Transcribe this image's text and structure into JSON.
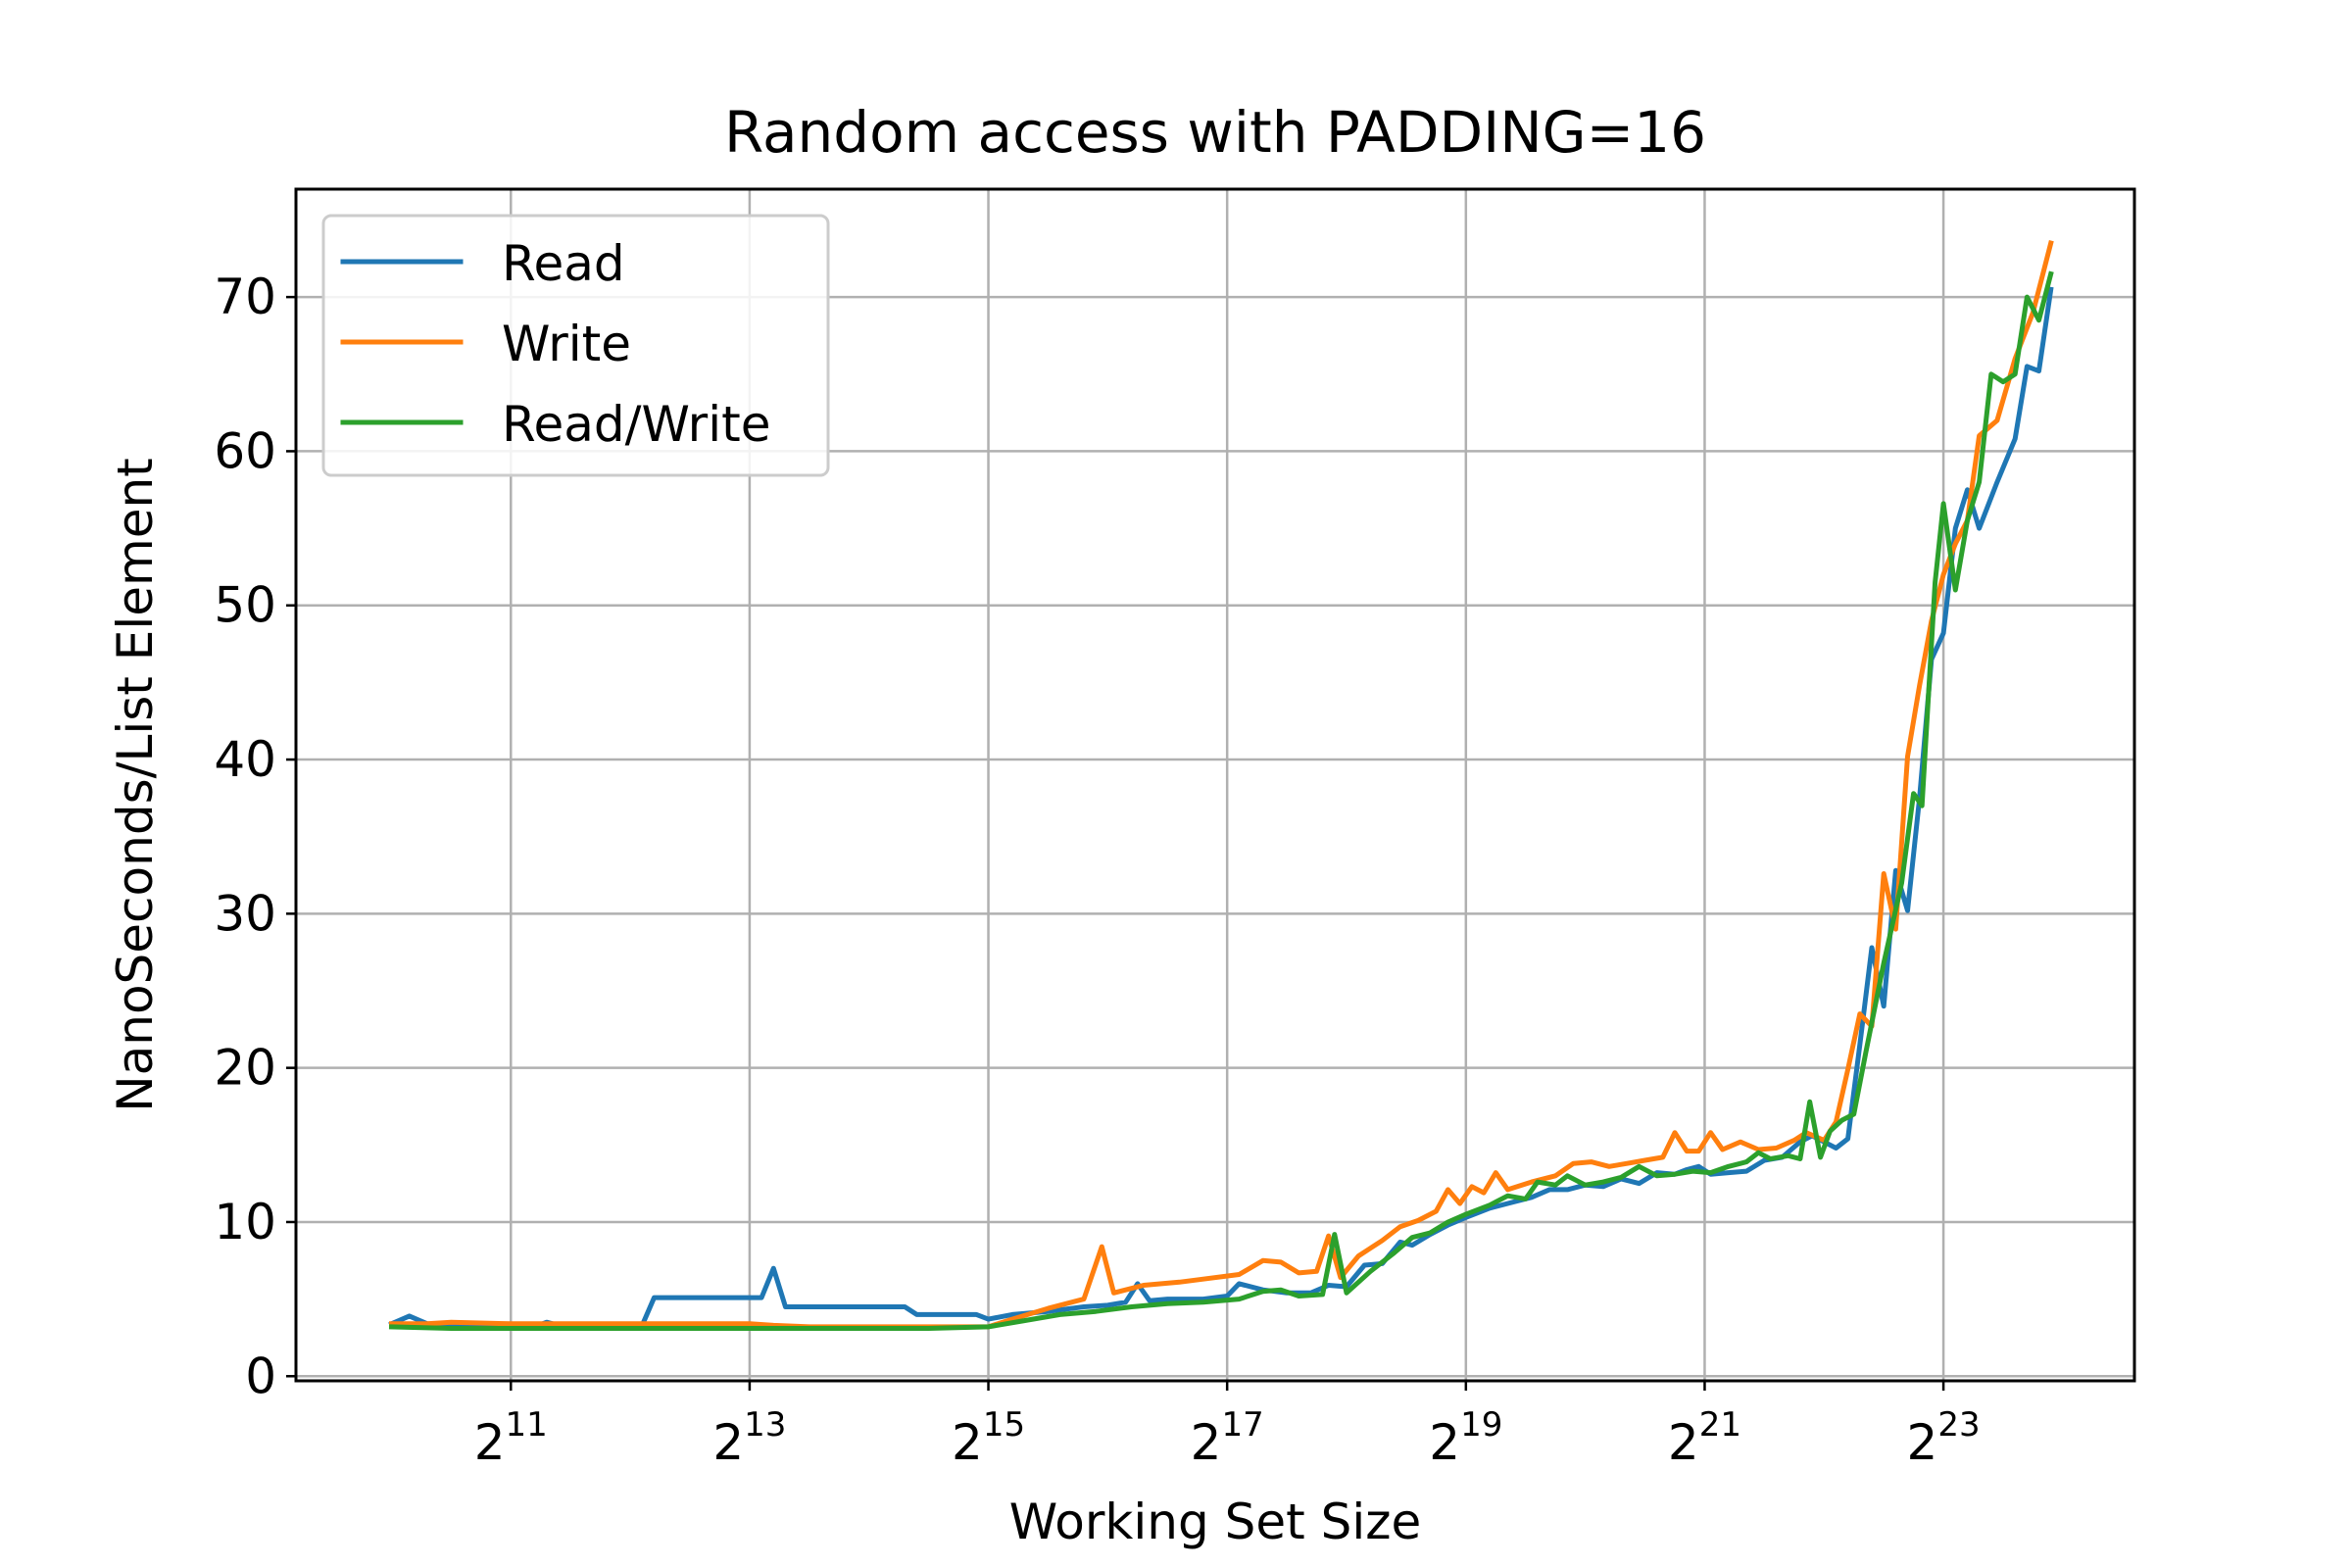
{
  "chart_data": {
    "type": "line",
    "title": "Random access with PADDING=16",
    "xlabel": "Working Set Size",
    "ylabel": "NanoSeconds/List Element",
    "x_scale": "log2",
    "x_ticks": [
      {
        "base": "2",
        "exp": "11",
        "value": 2048
      },
      {
        "base": "2",
        "exp": "13",
        "value": 8192
      },
      {
        "base": "2",
        "exp": "15",
        "value": 32768
      },
      {
        "base": "2",
        "exp": "17",
        "value": 131072
      },
      {
        "base": "2",
        "exp": "19",
        "value": 524288
      },
      {
        "base": "2",
        "exp": "21",
        "value": 2097152
      },
      {
        "base": "2",
        "exp": "23",
        "value": 8388608
      }
    ],
    "y_ticks": [
      "0",
      "10",
      "20",
      "30",
      "40",
      "50",
      "60",
      "70"
    ],
    "xlim_exp": [
      9.2,
      24.6
    ],
    "ylim": [
      -0.3,
      77
    ],
    "grid": true,
    "legend_position": "top-left",
    "series": [
      {
        "name": "Read",
        "color": "#1f77b4",
        "points": [
          [
            10.0,
            3.4
          ],
          [
            10.15,
            3.9
          ],
          [
            10.3,
            3.4
          ],
          [
            10.5,
            3.3
          ],
          [
            11.0,
            3.3
          ],
          [
            11.2,
            3.2
          ],
          [
            11.3,
            3.5
          ],
          [
            11.4,
            3.3
          ],
          [
            12.0,
            3.3
          ],
          [
            12.1,
            3.3
          ],
          [
            12.2,
            5.1
          ],
          [
            13.0,
            5.1
          ],
          [
            13.1,
            5.1
          ],
          [
            13.2,
            7.0
          ],
          [
            13.3,
            4.5
          ],
          [
            14.0,
            4.5
          ],
          [
            14.3,
            4.5
          ],
          [
            14.4,
            4.0
          ],
          [
            14.9,
            4.0
          ],
          [
            15.0,
            3.7
          ],
          [
            15.2,
            4.0
          ],
          [
            15.5,
            4.2
          ],
          [
            15.8,
            4.5
          ],
          [
            16.0,
            4.6
          ],
          [
            16.15,
            4.8
          ],
          [
            16.25,
            6.0
          ],
          [
            16.35,
            4.9
          ],
          [
            16.5,
            5.0
          ],
          [
            16.8,
            5.0
          ],
          [
            17.0,
            5.2
          ],
          [
            17.1,
            6.0
          ],
          [
            17.3,
            5.6
          ],
          [
            17.5,
            5.4
          ],
          [
            17.7,
            5.4
          ],
          [
            17.85,
            5.9
          ],
          [
            18.0,
            5.8
          ],
          [
            18.15,
            7.2
          ],
          [
            18.3,
            7.3
          ],
          [
            18.45,
            8.7
          ],
          [
            18.55,
            8.5
          ],
          [
            18.7,
            9.2
          ],
          [
            18.85,
            9.8
          ],
          [
            19.0,
            10.3
          ],
          [
            19.2,
            10.9
          ],
          [
            19.4,
            11.3
          ],
          [
            19.55,
            11.6
          ],
          [
            19.7,
            12.1
          ],
          [
            19.85,
            12.1
          ],
          [
            20.0,
            12.4
          ],
          [
            20.15,
            12.3
          ],
          [
            20.3,
            12.8
          ],
          [
            20.45,
            12.5
          ],
          [
            20.6,
            13.2
          ],
          [
            20.75,
            13.1
          ],
          [
            20.85,
            13.4
          ],
          [
            20.95,
            13.6
          ],
          [
            21.05,
            13.1
          ],
          [
            21.2,
            13.2
          ],
          [
            21.35,
            13.3
          ],
          [
            21.5,
            14.0
          ],
          [
            21.65,
            14.2
          ],
          [
            21.8,
            15.2
          ],
          [
            21.9,
            15.6
          ],
          [
            22.0,
            15.2
          ],
          [
            22.1,
            14.8
          ],
          [
            22.2,
            15.4
          ],
          [
            22.3,
            21.5
          ],
          [
            22.4,
            27.8
          ],
          [
            22.5,
            24.0
          ],
          [
            22.6,
            32.8
          ],
          [
            22.7,
            30.2
          ],
          [
            22.8,
            37.5
          ],
          [
            22.9,
            46.5
          ],
          [
            23.0,
            48.2
          ],
          [
            23.1,
            55.0
          ],
          [
            23.2,
            57.5
          ],
          [
            23.3,
            55.0
          ],
          [
            23.45,
            58.0
          ],
          [
            23.6,
            60.8
          ],
          [
            23.7,
            65.5
          ],
          [
            23.8,
            65.2
          ],
          [
            23.9,
            70.5
          ]
        ]
      },
      {
        "name": "Write",
        "color": "#ff7f0e",
        "points": [
          [
            10.0,
            3.4
          ],
          [
            10.3,
            3.4
          ],
          [
            10.5,
            3.5
          ],
          [
            11.0,
            3.4
          ],
          [
            11.5,
            3.4
          ],
          [
            12.0,
            3.4
          ],
          [
            12.5,
            3.4
          ],
          [
            13.0,
            3.4
          ],
          [
            13.2,
            3.3
          ],
          [
            13.5,
            3.2
          ],
          [
            14.0,
            3.2
          ],
          [
            14.5,
            3.2
          ],
          [
            15.0,
            3.2
          ],
          [
            15.2,
            3.7
          ],
          [
            15.5,
            4.4
          ],
          [
            15.8,
            5.0
          ],
          [
            15.95,
            8.4
          ],
          [
            16.05,
            5.4
          ],
          [
            16.3,
            5.9
          ],
          [
            16.6,
            6.1
          ],
          [
            16.8,
            6.3
          ],
          [
            17.1,
            6.6
          ],
          [
            17.3,
            7.5
          ],
          [
            17.45,
            7.4
          ],
          [
            17.6,
            6.7
          ],
          [
            17.75,
            6.8
          ],
          [
            17.85,
            9.1
          ],
          [
            17.95,
            6.4
          ],
          [
            18.1,
            7.8
          ],
          [
            18.3,
            8.8
          ],
          [
            18.45,
            9.7
          ],
          [
            18.6,
            10.1
          ],
          [
            18.75,
            10.7
          ],
          [
            18.85,
            12.1
          ],
          [
            18.95,
            11.2
          ],
          [
            19.05,
            12.3
          ],
          [
            19.15,
            11.9
          ],
          [
            19.25,
            13.2
          ],
          [
            19.35,
            12.1
          ],
          [
            19.55,
            12.6
          ],
          [
            19.75,
            13.0
          ],
          [
            19.9,
            13.8
          ],
          [
            20.05,
            13.9
          ],
          [
            20.2,
            13.6
          ],
          [
            20.35,
            13.8
          ],
          [
            20.5,
            14.0
          ],
          [
            20.65,
            14.2
          ],
          [
            20.75,
            15.8
          ],
          [
            20.85,
            14.6
          ],
          [
            20.95,
            14.6
          ],
          [
            21.05,
            15.8
          ],
          [
            21.15,
            14.7
          ],
          [
            21.3,
            15.2
          ],
          [
            21.45,
            14.7
          ],
          [
            21.6,
            14.8
          ],
          [
            21.75,
            15.3
          ],
          [
            21.85,
            15.8
          ],
          [
            22.0,
            15.3
          ],
          [
            22.1,
            16.5
          ],
          [
            22.2,
            19.9
          ],
          [
            22.3,
            23.5
          ],
          [
            22.4,
            22.7
          ],
          [
            22.5,
            32.6
          ],
          [
            22.6,
            29.0
          ],
          [
            22.7,
            40.2
          ],
          [
            22.8,
            44.8
          ],
          [
            22.9,
            49.0
          ],
          [
            23.0,
            52.0
          ],
          [
            23.1,
            54.0
          ],
          [
            23.2,
            55.5
          ],
          [
            23.3,
            61.0
          ],
          [
            23.45,
            62.0
          ],
          [
            23.6,
            66.0
          ],
          [
            23.75,
            69.0
          ],
          [
            23.9,
            73.5
          ]
        ]
      },
      {
        "name": "Read/Write",
        "color": "#2ca02c",
        "points": [
          [
            10.0,
            3.2
          ],
          [
            10.5,
            3.1
          ],
          [
            11.0,
            3.1
          ],
          [
            11.5,
            3.1
          ],
          [
            12.0,
            3.1
          ],
          [
            12.5,
            3.1
          ],
          [
            13.0,
            3.1
          ],
          [
            13.5,
            3.1
          ],
          [
            14.0,
            3.1
          ],
          [
            14.5,
            3.1
          ],
          [
            15.0,
            3.2
          ],
          [
            15.3,
            3.6
          ],
          [
            15.6,
            4.0
          ],
          [
            15.9,
            4.2
          ],
          [
            16.2,
            4.5
          ],
          [
            16.5,
            4.7
          ],
          [
            16.8,
            4.8
          ],
          [
            17.1,
            5.0
          ],
          [
            17.3,
            5.5
          ],
          [
            17.45,
            5.6
          ],
          [
            17.6,
            5.2
          ],
          [
            17.8,
            5.3
          ],
          [
            17.9,
            9.2
          ],
          [
            18.0,
            5.4
          ],
          [
            18.2,
            6.8
          ],
          [
            18.4,
            8.0
          ],
          [
            18.55,
            9.0
          ],
          [
            18.7,
            9.3
          ],
          [
            18.85,
            10.0
          ],
          [
            19.0,
            10.5
          ],
          [
            19.2,
            11.1
          ],
          [
            19.35,
            11.7
          ],
          [
            19.5,
            11.5
          ],
          [
            19.6,
            12.6
          ],
          [
            19.75,
            12.4
          ],
          [
            19.85,
            13.0
          ],
          [
            20.0,
            12.4
          ],
          [
            20.15,
            12.6
          ],
          [
            20.3,
            12.9
          ],
          [
            20.45,
            13.6
          ],
          [
            20.6,
            13.0
          ],
          [
            20.75,
            13.1
          ],
          [
            20.9,
            13.3
          ],
          [
            21.05,
            13.2
          ],
          [
            21.2,
            13.6
          ],
          [
            21.35,
            13.9
          ],
          [
            21.45,
            14.5
          ],
          [
            21.55,
            14.1
          ],
          [
            21.7,
            14.3
          ],
          [
            21.8,
            14.1
          ],
          [
            21.88,
            17.8
          ],
          [
            21.97,
            14.2
          ],
          [
            22.05,
            15.9
          ],
          [
            22.15,
            16.6
          ],
          [
            22.25,
            17.0
          ],
          [
            22.35,
            21.0
          ],
          [
            22.5,
            26.8
          ],
          [
            22.65,
            32.0
          ],
          [
            22.75,
            37.8
          ],
          [
            22.82,
            37.0
          ],
          [
            22.93,
            51.5
          ],
          [
            23.0,
            56.6
          ],
          [
            23.1,
            51.0
          ],
          [
            23.2,
            55.5
          ],
          [
            23.3,
            58.0
          ],
          [
            23.4,
            65.0
          ],
          [
            23.5,
            64.5
          ],
          [
            23.6,
            65.0
          ],
          [
            23.7,
            70.0
          ],
          [
            23.8,
            68.5
          ],
          [
            23.9,
            71.5
          ]
        ]
      }
    ]
  }
}
